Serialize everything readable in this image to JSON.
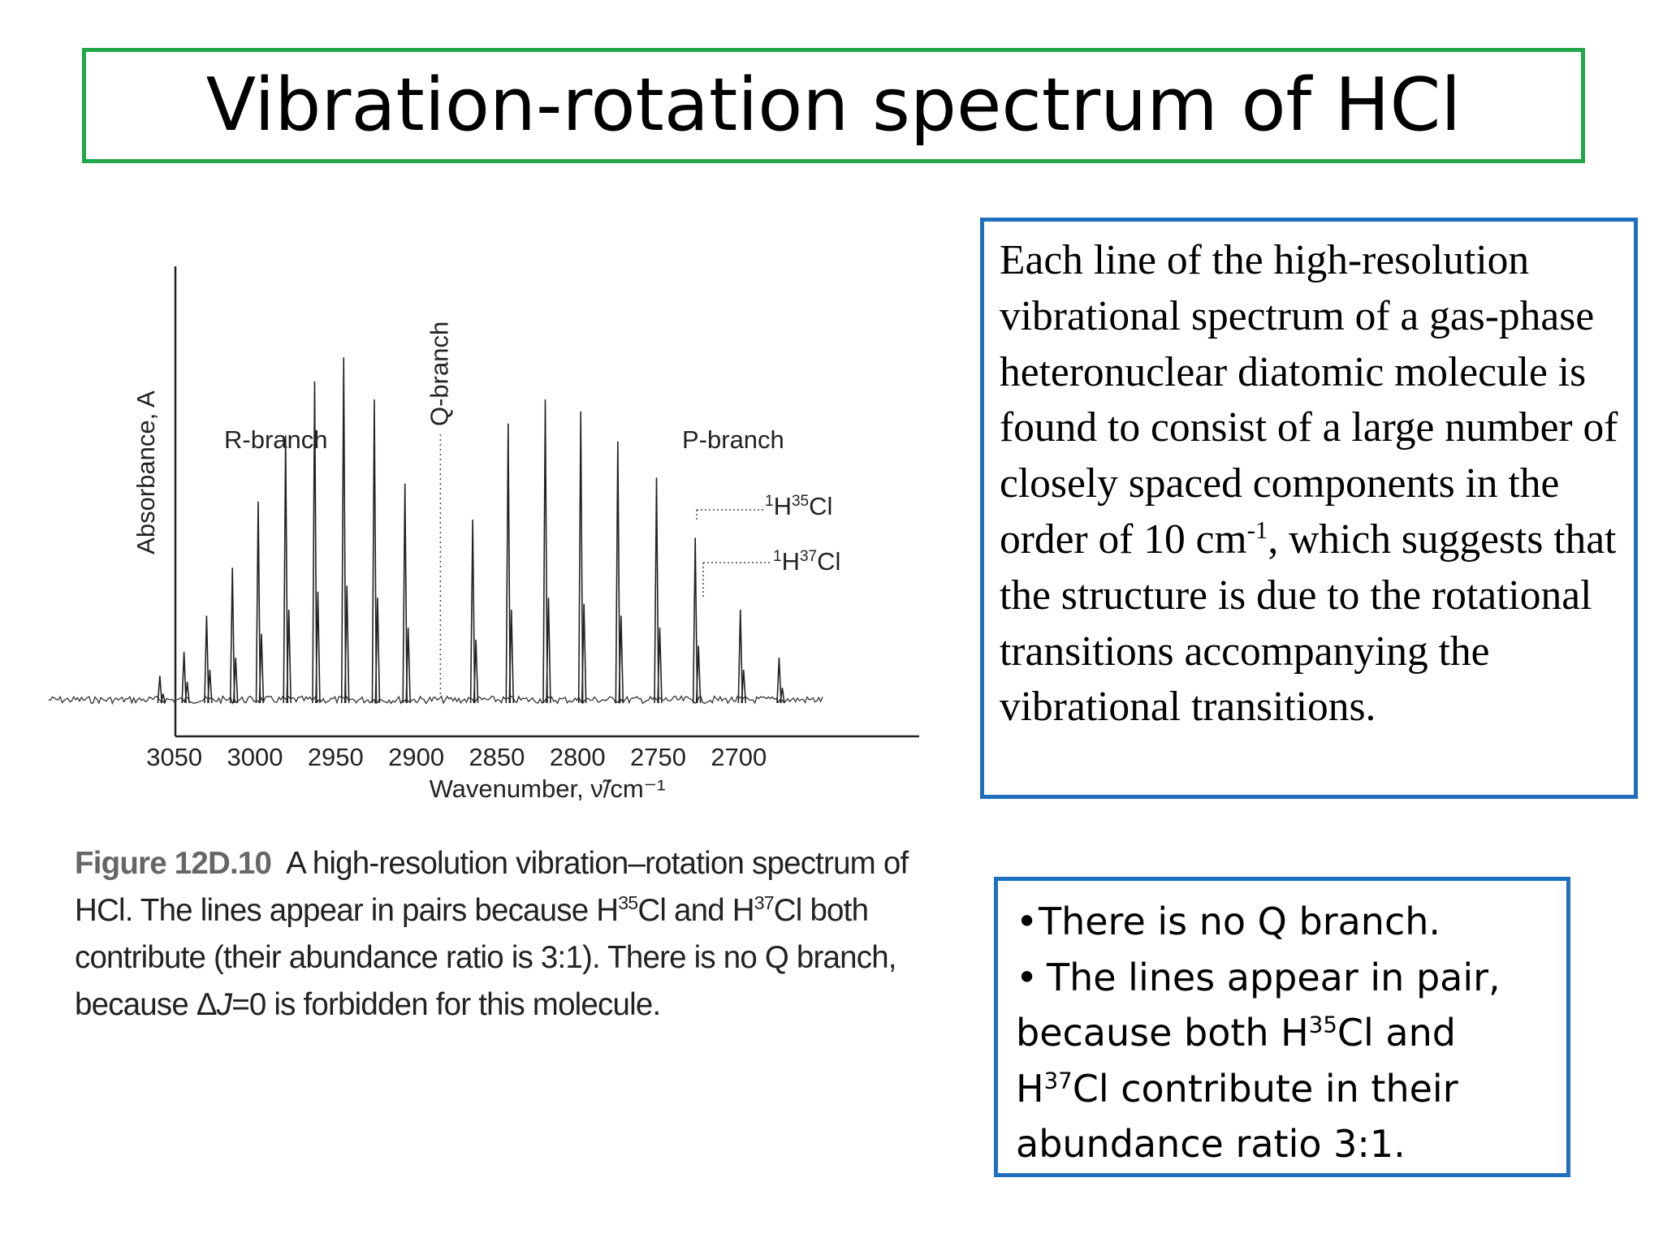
{
  "slide_title": "Vibration-rotation spectrum of HCl",
  "chart_data": {
    "type": "line",
    "ylabel": "Absorbance, A",
    "xlabel": "Wavenumber, ν̃/cm⁻¹",
    "xlim": [
      3130,
      2640
    ],
    "x_ticks": [
      3050,
      3000,
      2950,
      2900,
      2850,
      2800,
      2750,
      2700
    ],
    "ylim": [
      0,
      1
    ],
    "annotations": {
      "r_branch": "R-branch",
      "p_branch": "P-branch",
      "q_branch": "Q-branch",
      "q_branch_position": 2885,
      "h35": "1H35Cl",
      "h37": "1H37Cl"
    },
    "series": [
      {
        "name": "1H35Cl",
        "x": [
          2675,
          2699,
          2727,
          2751,
          2775,
          2798,
          2820,
          2843,
          2865,
          2907,
          2926,
          2945,
          2963,
          2981,
          2998,
          3014,
          3030,
          3044,
          3059
        ],
        "y": [
          0.07,
          0.15,
          0.27,
          0.37,
          0.43,
          0.48,
          0.5,
          0.46,
          0.3,
          0.36,
          0.5,
          0.57,
          0.53,
          0.44,
          0.33,
          0.22,
          0.14,
          0.08,
          0.04
        ]
      },
      {
        "name": "1H37Cl",
        "x": [
          2673,
          2697,
          2725,
          2749,
          2773,
          2796,
          2818,
          2841,
          2863,
          2905,
          2924,
          2943,
          2961,
          2979,
          2996,
          3012,
          3028,
          3042,
          3057
        ],
        "y": [
          0.02,
          0.05,
          0.09,
          0.12,
          0.14,
          0.16,
          0.17,
          0.15,
          0.1,
          0.12,
          0.17,
          0.19,
          0.18,
          0.15,
          0.11,
          0.07,
          0.05,
          0.03,
          0.01
        ]
      }
    ]
  },
  "caption": {
    "label": "Figure 12D.10",
    "text": "A high-resolution vibration–rotation spectrum of HCl. The lines appear in pairs because H35Cl and H37Cl both contribute (their abundance ratio is 3:1). There is no Q branch, because ΔJ=0 is forbidden for this molecule."
  },
  "description": "Each line of the high-resolution vibrational spectrum of a gas-phase heteronuclear diatomic molecule is found to consist of a large number of closely spaced components in the order of 10 cm-1, which suggests that the structure is due to the rotational transitions accompanying the vibrational transitions.",
  "notes": [
    "There is no Q branch.",
    "The lines appear in pair, because both H35Cl and H37Cl contribute in their abundance ratio 3:1."
  ]
}
